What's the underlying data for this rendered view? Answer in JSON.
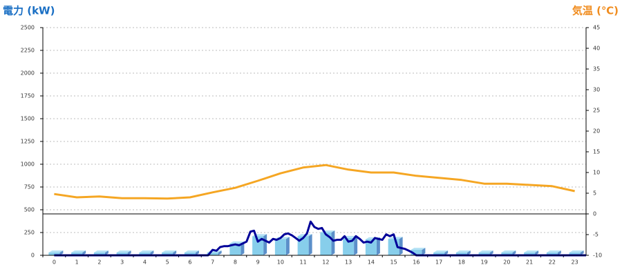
{
  "chart_data": {
    "type": "combo",
    "y_title": "電力 (kW)",
    "y2_title": "気温 (℃)",
    "categories": [
      "0",
      "1",
      "2",
      "3",
      "4",
      "5",
      "6",
      "7",
      "8",
      "9",
      "10",
      "11",
      "12",
      "13",
      "14",
      "15",
      "16",
      "17",
      "18",
      "19",
      "20",
      "21",
      "22",
      "23"
    ],
    "ylim": [
      0,
      2500
    ],
    "yticks": [
      0,
      250,
      500,
      750,
      1000,
      1250,
      1500,
      1750,
      2000,
      2250,
      2500
    ],
    "y2lim": [
      -10,
      45
    ],
    "y2ticks": [
      -10,
      -5,
      0,
      5,
      10,
      15,
      20,
      25,
      30,
      35,
      40,
      45
    ],
    "grid": true,
    "series": [
      {
        "kind": "bar",
        "color": "#87ceeb",
        "values": [
          30,
          30,
          30,
          30,
          30,
          30,
          30,
          30,
          130,
          210,
          180,
          210,
          250,
          190,
          175,
          180,
          60,
          30,
          30,
          30,
          30,
          30,
          30,
          30
        ]
      },
      {
        "kind": "line",
        "color": "#000099",
        "x": [
          0,
          6.8,
          7,
          7.17,
          7.33,
          7.5,
          7.67,
          7.83,
          8,
          8.17,
          8.33,
          8.5,
          8.67,
          8.83,
          9,
          9.17,
          9.33,
          9.5,
          9.67,
          9.83,
          10,
          10.17,
          10.33,
          10.5,
          10.67,
          10.83,
          11,
          11.17,
          11.33,
          11.5,
          11.67,
          11.83,
          12,
          12.17,
          12.33,
          12.5,
          12.67,
          12.83,
          13,
          13.17,
          13.33,
          13.5,
          13.67,
          13.83,
          14,
          14.17,
          14.33,
          14.5,
          14.67,
          14.83,
          15,
          15.17,
          15.33,
          15.5,
          15.67,
          15.83,
          16,
          23.5
        ],
        "values": [
          0,
          0,
          60,
          50,
          90,
          100,
          100,
          110,
          120,
          110,
          130,
          150,
          260,
          270,
          150,
          180,
          160,
          140,
          180,
          170,
          190,
          230,
          240,
          220,
          190,
          160,
          190,
          240,
          370,
          310,
          290,
          300,
          230,
          200,
          160,
          170,
          170,
          210,
          150,
          160,
          210,
          180,
          140,
          150,
          140,
          190,
          180,
          170,
          230,
          210,
          230,
          90,
          80,
          70,
          50,
          30,
          0,
          0
        ]
      },
      {
        "kind": "line",
        "axis": "y2",
        "color": "#f5a623",
        "values": [
          4.8,
          4.0,
          4.2,
          3.8,
          3.8,
          3.7,
          4.0,
          5.2,
          6.3,
          8.0,
          9.8,
          11.2,
          11.8,
          10.7,
          10.0,
          10.0,
          9.2,
          8.7,
          8.2,
          7.3,
          7.3,
          7.0,
          6.7,
          5.5
        ]
      }
    ]
  }
}
